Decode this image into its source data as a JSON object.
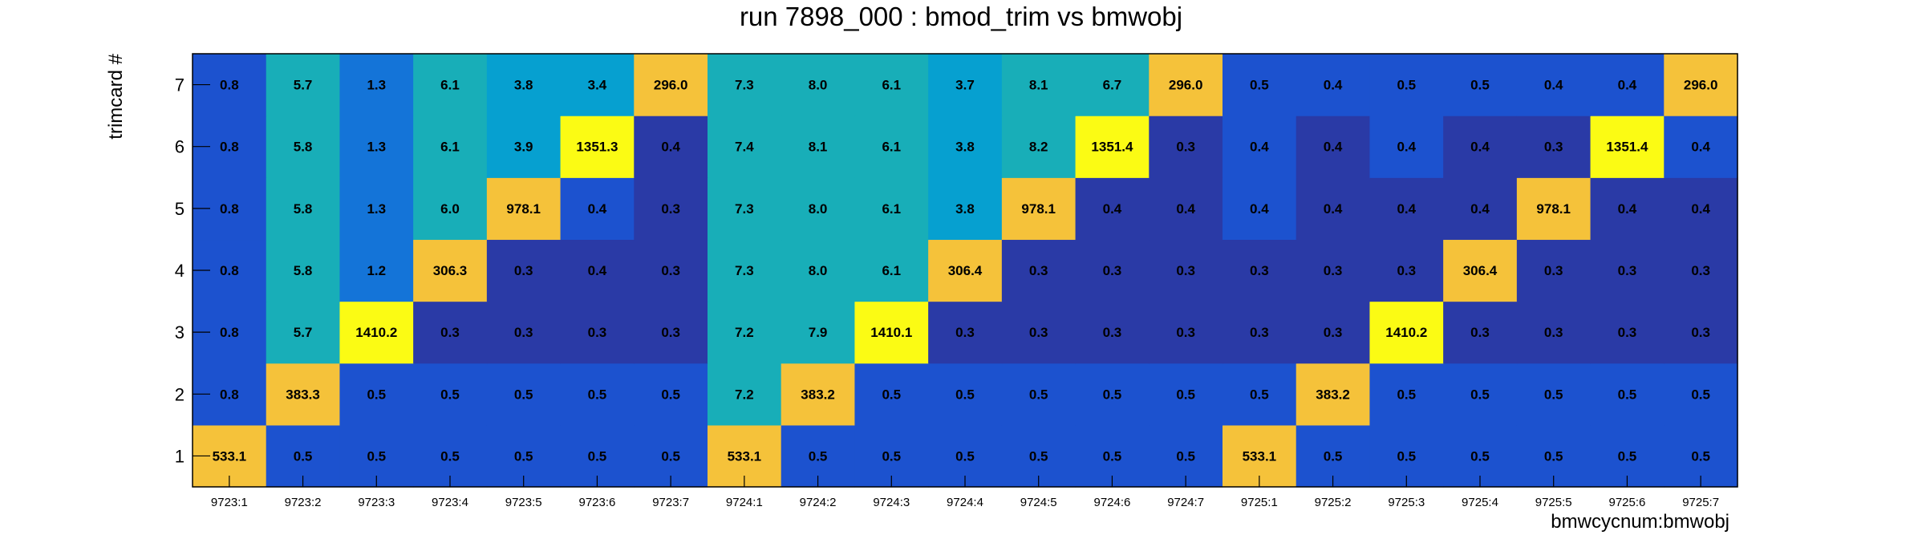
{
  "chart_data": {
    "type": "heatmap",
    "title": "run 7898_000 : bmod_trim vs bmwobj",
    "xlabel": "bmwcycnum:bmwobj",
    "ylabel": "trimcard #",
    "x_categories": [
      "9723:1",
      "9723:2",
      "9723:3",
      "9723:4",
      "9723:5",
      "9723:6",
      "9723:7",
      "9724:1",
      "9724:2",
      "9724:3",
      "9724:4",
      "9724:5",
      "9724:6",
      "9724:7",
      "9725:1",
      "9725:2",
      "9725:3",
      "9725:4",
      "9725:5",
      "9725:6",
      "9725:7"
    ],
    "y_categories": [
      "1",
      "2",
      "3",
      "4",
      "5",
      "6",
      "7"
    ],
    "value_labels": {
      "1": [
        "533.1",
        "0.5",
        "0.5",
        "0.5",
        "0.5",
        "0.5",
        "0.5",
        "533.1",
        "0.5",
        "0.5",
        "0.5",
        "0.5",
        "0.5",
        "0.5",
        "533.1",
        "0.5",
        "0.5",
        "0.5",
        "0.5",
        "0.5",
        "0.5"
      ],
      "2": [
        "0.8",
        "383.3",
        "0.5",
        "0.5",
        "0.5",
        "0.5",
        "0.5",
        "7.2",
        "383.2",
        "0.5",
        "0.5",
        "0.5",
        "0.5",
        "0.5",
        "0.5",
        "383.2",
        "0.5",
        "0.5",
        "0.5",
        "0.5",
        "0.5"
      ],
      "3": [
        "0.8",
        "5.7",
        "1410.2",
        "0.3",
        "0.3",
        "0.3",
        "0.3",
        "7.2",
        "7.9",
        "1410.1",
        "0.3",
        "0.3",
        "0.3",
        "0.3",
        "0.3",
        "0.3",
        "1410.2",
        "0.3",
        "0.3",
        "0.3",
        "0.3"
      ],
      "4": [
        "0.8",
        "5.8",
        "1.2",
        "306.3",
        "0.3",
        "0.4",
        "0.3",
        "7.3",
        "8.0",
        "6.1",
        "306.4",
        "0.3",
        "0.3",
        "0.3",
        "0.3",
        "0.3",
        "0.3",
        "306.4",
        "0.3",
        "0.3",
        "0.3"
      ],
      "5": [
        "0.8",
        "5.8",
        "1.3",
        "6.0",
        "978.1",
        "0.4",
        "0.3",
        "7.3",
        "8.0",
        "6.1",
        "3.8",
        "978.1",
        "0.4",
        "0.4",
        "0.4",
        "0.4",
        "0.4",
        "0.4",
        "978.1",
        "0.4",
        "0.4"
      ],
      "6": [
        "0.8",
        "5.8",
        "1.3",
        "6.1",
        "3.9",
        "1351.3",
        "0.4",
        "7.4",
        "8.1",
        "6.1",
        "3.8",
        "8.2",
        "1351.4",
        "0.3",
        "0.4",
        "0.4",
        "0.4",
        "0.4",
        "0.3",
        "1351.4",
        "0.4"
      ],
      "7": [
        "0.8",
        "5.7",
        "1.3",
        "6.1",
        "3.8",
        "3.4",
        "296.0",
        "7.3",
        "8.0",
        "6.1",
        "3.7",
        "8.1",
        "6.7",
        "296.0",
        "0.5",
        "0.4",
        "0.5",
        "0.5",
        "0.4",
        "0.4",
        "296.0"
      ]
    },
    "colors": {
      "very_low": "#2a3aa6",
      "low": "#1c52cf",
      "lowmid": "#1474d8",
      "mid": "#06a0d0",
      "midhigh": "#18aeb8",
      "high": "#f5c23a",
      "max": "#fbfb14"
    },
    "grid": false
  }
}
